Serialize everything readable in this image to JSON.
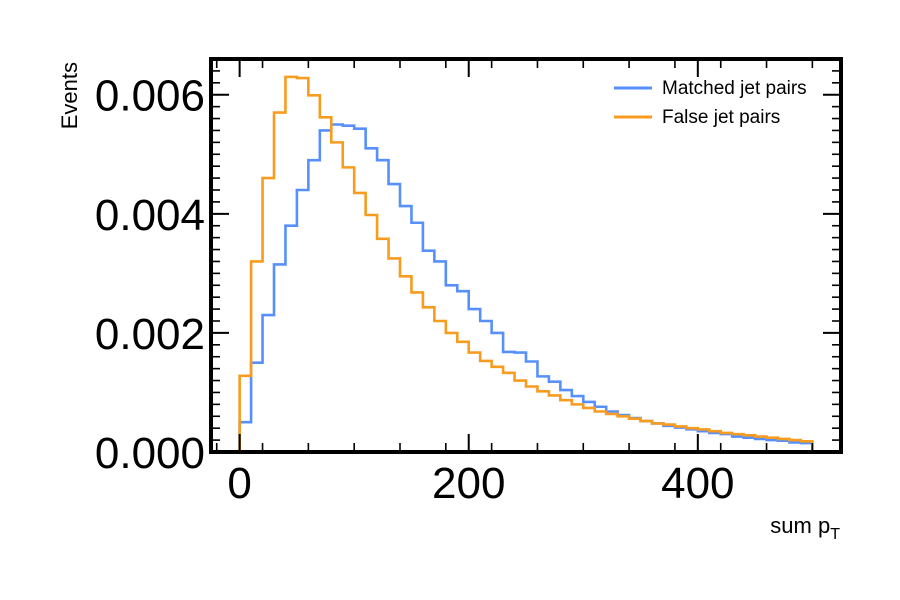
{
  "chart_data": {
    "type": "histogram-step",
    "xlabel": "sum p",
    "xlabel_subscript": "T",
    "ylabel": "Events",
    "xlim": [
      -25,
      525
    ],
    "ylim": [
      0,
      0.0066
    ],
    "x_ticks": [
      0,
      200,
      400
    ],
    "x_tick_labels": [
      "0",
      "200",
      "400"
    ],
    "y_ticks": [
      0,
      0.002,
      0.004,
      0.006
    ],
    "y_tick_labels": [
      "0.000",
      "0.002",
      "0.004",
      "0.006"
    ],
    "legend_position": "top-right",
    "grid": false,
    "bin_edges": [
      0,
      10,
      20,
      30,
      40,
      50,
      60,
      70,
      80,
      90,
      100,
      110,
      120,
      130,
      140,
      150,
      160,
      170,
      180,
      190,
      200,
      210,
      220,
      230,
      240,
      250,
      260,
      270,
      280,
      290,
      300,
      310,
      320,
      330,
      340,
      350,
      360,
      370,
      380,
      390,
      400,
      410,
      420,
      430,
      440,
      450,
      460,
      470,
      480,
      490,
      500
    ],
    "series": [
      {
        "name": "Matched jet pairs",
        "color": "#5790fc",
        "values": [
          0.0005,
          0.0015,
          0.0023,
          0.00315,
          0.0038,
          0.0044,
          0.0049,
          0.0054,
          0.0055,
          0.00548,
          0.00543,
          0.0051,
          0.0049,
          0.0045,
          0.00413,
          0.00385,
          0.00338,
          0.0032,
          0.0028,
          0.0027,
          0.0024,
          0.0022,
          0.002,
          0.00168,
          0.00167,
          0.00152,
          0.00127,
          0.00118,
          0.00104,
          0.00094,
          0.00084,
          0.00076,
          0.00068,
          0.00062,
          0.00057,
          0.00052,
          0.00048,
          0.00044,
          0.00041,
          0.00038,
          0.00035,
          0.00032,
          0.0003,
          0.00026,
          0.00024,
          0.00022,
          0.0002,
          0.00019,
          0.00016,
          0.00015
        ]
      },
      {
        "name": "False jet pairs",
        "color": "#f89c20",
        "values": [
          0.00128,
          0.0032,
          0.0046,
          0.0057,
          0.0063,
          0.00628,
          0.00599,
          0.00562,
          0.0052,
          0.00478,
          0.00435,
          0.00398,
          0.00358,
          0.00325,
          0.00295,
          0.00268,
          0.00243,
          0.0022,
          0.002,
          0.00185,
          0.00167,
          0.00153,
          0.00143,
          0.00133,
          0.0012,
          0.0011,
          0.00102,
          0.00095,
          0.00087,
          0.0008,
          0.00074,
          0.00068,
          0.00064,
          0.0006,
          0.00056,
          0.00052,
          0.00048,
          0.00046,
          0.00043,
          0.0004,
          0.00038,
          0.00035,
          0.00032,
          0.0003,
          0.00028,
          0.00026,
          0.00024,
          0.00022,
          0.0002,
          0.00018
        ]
      }
    ]
  }
}
